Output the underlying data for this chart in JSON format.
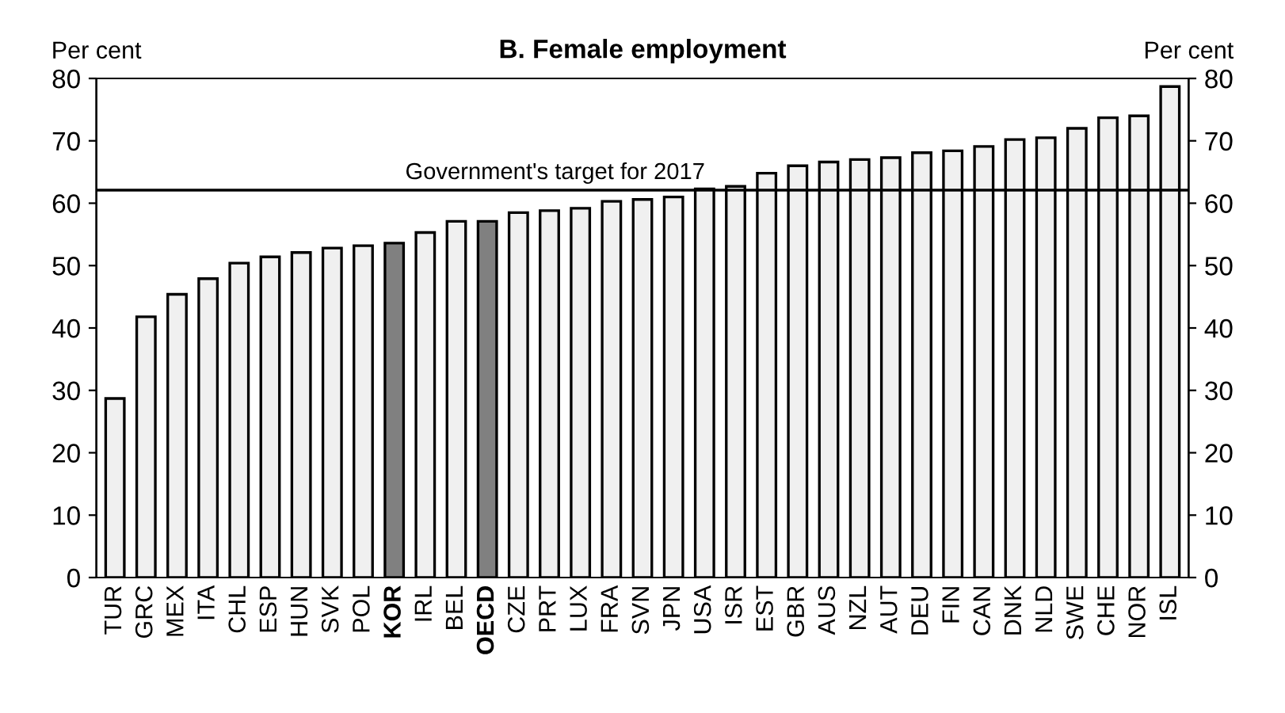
{
  "chart_data": {
    "type": "bar",
    "title": "B. Female employment",
    "ylabel": "Per cent",
    "y2label": "Per cent",
    "categories": [
      "TUR",
      "GRC",
      "MEX",
      "ITA",
      "CHL",
      "ESP",
      "HUN",
      "SVK",
      "POL",
      "KOR",
      "IRL",
      "BEL",
      "OECD",
      "CZE",
      "PRT",
      "LUX",
      "FRA",
      "SVN",
      "JPN",
      "USA",
      "ISR",
      "EST",
      "GBR",
      "AUS",
      "NZL",
      "AUT",
      "DEU",
      "FIN",
      "CAN",
      "DNK",
      "NLD",
      "SWE",
      "CHE",
      "NOR",
      "ISL"
    ],
    "values": [
      28.7,
      41.8,
      45.4,
      47.9,
      50.4,
      51.4,
      52.1,
      52.8,
      53.2,
      53.6,
      55.3,
      57.1,
      57.1,
      58.5,
      58.8,
      59.2,
      60.3,
      60.6,
      61.0,
      62.3,
      62.7,
      64.8,
      66.0,
      66.6,
      67.0,
      67.3,
      68.1,
      68.4,
      69.1,
      70.2,
      70.5,
      72.0,
      73.7,
      74.0,
      78.7
    ],
    "colors": [
      "#f0f0f0",
      "#f0f0f0",
      "#f0f0f0",
      "#f0f0f0",
      "#f0f0f0",
      "#f0f0f0",
      "#f0f0f0",
      "#f0f0f0",
      "#f0f0f0",
      "#808080",
      "#f0f0f0",
      "#f0f0f0",
      "#808080",
      "#f0f0f0",
      "#f0f0f0",
      "#f0f0f0",
      "#f0f0f0",
      "#f0f0f0",
      "#f0f0f0",
      "#f0f0f0",
      "#f0f0f0",
      "#f0f0f0",
      "#f0f0f0",
      "#f0f0f0",
      "#f0f0f0",
      "#f0f0f0",
      "#f0f0f0",
      "#f0f0f0",
      "#f0f0f0",
      "#f0f0f0",
      "#f0f0f0",
      "#f0f0f0",
      "#f0f0f0",
      "#f0f0f0",
      "#f0f0f0"
    ],
    "ylim": [
      0,
      80
    ],
    "yticks": [
      0,
      10,
      20,
      30,
      40,
      50,
      60,
      70,
      80
    ],
    "y2lim": [
      0,
      80
    ],
    "y2ticks": [
      0,
      10,
      20,
      30,
      40,
      50,
      60,
      70,
      80
    ],
    "ref_lines": [
      {
        "axis": "y",
        "value": 62.1,
        "label": "Government's target for 2017",
        "color": "#000000"
      }
    ],
    "grid": false,
    "legend": false
  }
}
